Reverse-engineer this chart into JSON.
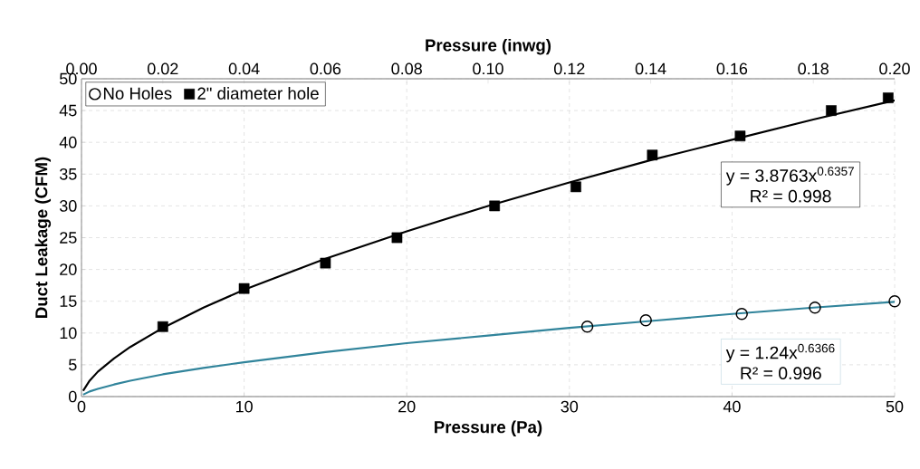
{
  "chart_data": {
    "type": "scatter",
    "xlabel": "Pressure (Pa)",
    "ylabel": "Duct  Leakage (CFM)",
    "x2label": "Pressure (inwg)",
    "xlim": [
      0,
      50
    ],
    "xticks": [
      0,
      10,
      20,
      30,
      40,
      50
    ],
    "ylim": [
      0,
      50
    ],
    "yticks": [
      0,
      5,
      10,
      15,
      20,
      25,
      30,
      35,
      40,
      45,
      50
    ],
    "x2lim": [
      0,
      0.2
    ],
    "x2ticks": [
      {
        "value": 0,
        "label": "0.00"
      },
      {
        "value": 0.02,
        "label": "0.02"
      },
      {
        "value": 0.04,
        "label": "0.04"
      },
      {
        "value": 0.06,
        "label": "0.06"
      },
      {
        "value": 0.08,
        "label": "0.08"
      },
      {
        "value": 0.1,
        "label": "0.10"
      },
      {
        "value": 0.12,
        "label": "0.12"
      },
      {
        "value": 0.14,
        "label": "0.14"
      },
      {
        "value": 0.16,
        "label": "0.16"
      },
      {
        "value": 0.18,
        "label": "0.18"
      },
      {
        "value": 0.2,
        "label": "0.20"
      }
    ],
    "grid": true,
    "legend": "top left",
    "series": [
      {
        "name": "No Holes",
        "marker": "circle",
        "color": "#000000",
        "x": [
          31.1,
          34.7,
          40.6,
          45.1,
          50
        ],
        "values": [
          11,
          12,
          13,
          14,
          15
        ]
      },
      {
        "name": "2\" diameter hole",
        "marker": "square",
        "color": "#000000",
        "x": [
          5,
          10,
          15,
          19.4,
          25.4,
          30.4,
          35.1,
          40.5,
          46.1,
          49.6
        ],
        "values": [
          11,
          17,
          21,
          25,
          30,
          33,
          38,
          41,
          45,
          47
        ]
      },
      {
        "type": "line",
        "marker": "none",
        "color": "#000000",
        "x": [
          0.1,
          0.5,
          1,
          2,
          3,
          5,
          7.5,
          10,
          15,
          20,
          25,
          30,
          35,
          40,
          45,
          50
        ],
        "values": [
          0.9,
          2.5,
          3.9,
          6.0,
          7.8,
          10.8,
          14.0,
          16.8,
          21.7,
          26.0,
          30.0,
          33.7,
          37.2,
          40.4,
          43.6,
          46.6
        ]
      },
      {
        "type": "line",
        "marker": "none",
        "color": "#31849b",
        "x": [
          0.1,
          0.5,
          1,
          2,
          3,
          5,
          7.5,
          10,
          15,
          20,
          25,
          30,
          35,
          40,
          45,
          50
        ],
        "values": [
          0.3,
          0.8,
          1.2,
          1.9,
          2.5,
          3.5,
          4.5,
          5.4,
          7.0,
          8.4,
          9.6,
          10.8,
          11.9,
          13.0,
          14.0,
          14.9
        ]
      }
    ],
    "annotations": [
      "y = 3.8763x$^{0.6357}$",
      "R² = 0.998",
      "y = 1.24x$^{0.6366}$",
      "R² = 0.996"
    ]
  }
}
